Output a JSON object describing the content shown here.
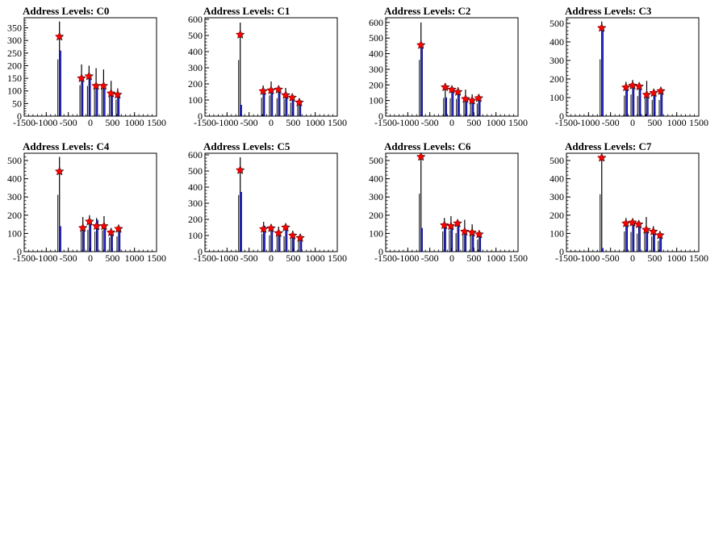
{
  "chart_data": [
    {
      "type": "histogram",
      "title": "Address Levels: C0",
      "xlim": [
        -1500,
        1500
      ],
      "ylim": [
        0,
        390
      ],
      "xticks": [
        -1500,
        -1000,
        -500,
        0,
        500,
        1000,
        1500
      ],
      "yticks": [
        0,
        50,
        100,
        150,
        200,
        250,
        300,
        350
      ],
      "peaks": [
        {
          "x": -700,
          "black": 375,
          "blue": 260,
          "marker": 315
        },
        {
          "x": -200,
          "black": 205,
          "blue": 150,
          "marker": 150
        },
        {
          "x": -30,
          "black": 200,
          "blue": 165,
          "marker": 158
        },
        {
          "x": 130,
          "black": 190,
          "blue": 125,
          "marker": 120
        },
        {
          "x": 300,
          "black": 185,
          "blue": 125,
          "marker": 120
        },
        {
          "x": 470,
          "black": 140,
          "blue": 95,
          "marker": 90
        },
        {
          "x": 620,
          "black": 110,
          "blue": 80,
          "marker": 85
        }
      ]
    },
    {
      "type": "histogram",
      "title": "Address Levels: C1",
      "xlim": [
        -1500,
        1500
      ],
      "ylim": [
        0,
        610
      ],
      "xticks": [
        -1500,
        -1000,
        -500,
        0,
        500,
        1000,
        1500
      ],
      "yticks": [
        0,
        100,
        200,
        300,
        400,
        500,
        600
      ],
      "peaks": [
        {
          "x": -700,
          "black": 580,
          "blue": 70,
          "marker": 505
        },
        {
          "x": -180,
          "black": 190,
          "blue": 160,
          "marker": 155
        },
        {
          "x": 0,
          "black": 215,
          "blue": 165,
          "marker": 160
        },
        {
          "x": 170,
          "black": 185,
          "blue": 170,
          "marker": 165
        },
        {
          "x": 330,
          "black": 175,
          "blue": 135,
          "marker": 130
        },
        {
          "x": 480,
          "black": 140,
          "blue": 120,
          "marker": 115
        },
        {
          "x": 640,
          "black": 110,
          "blue": 90,
          "marker": 85
        }
      ]
    },
    {
      "type": "histogram",
      "title": "Address Levels: C2",
      "xlim": [
        -1500,
        1500
      ],
      "ylim": [
        0,
        630
      ],
      "xticks": [
        -1500,
        -1000,
        -500,
        0,
        500,
        1000,
        1500
      ],
      "yticks": [
        0,
        100,
        200,
        300,
        400,
        500,
        600
      ],
      "peaks": [
        {
          "x": -700,
          "black": 600,
          "blue": 460,
          "marker": 455
        },
        {
          "x": -150,
          "black": 195,
          "blue": 120,
          "marker": 185
        },
        {
          "x": 0,
          "black": 190,
          "blue": 170,
          "marker": 170
        },
        {
          "x": 140,
          "black": 185,
          "blue": 150,
          "marker": 155
        },
        {
          "x": 310,
          "black": 170,
          "blue": 110,
          "marker": 110
        },
        {
          "x": 460,
          "black": 140,
          "blue": 100,
          "marker": 100
        },
        {
          "x": 610,
          "black": 135,
          "blue": 110,
          "marker": 115
        }
      ]
    },
    {
      "type": "histogram",
      "title": "Address Levels: C3",
      "xlim": [
        -1500,
        1500
      ],
      "ylim": [
        0,
        530
      ],
      "xticks": [
        -1500,
        -1000,
        -500,
        0,
        500,
        1000,
        1500
      ],
      "yticks": [
        0,
        100,
        200,
        300,
        400,
        500
      ],
      "peaks": [
        {
          "x": -700,
          "black": 510,
          "blue": 480,
          "marker": 475
        },
        {
          "x": -150,
          "black": 185,
          "blue": 160,
          "marker": 155
        },
        {
          "x": 0,
          "black": 195,
          "blue": 175,
          "marker": 165
        },
        {
          "x": 150,
          "black": 180,
          "blue": 165,
          "marker": 160
        },
        {
          "x": 320,
          "black": 190,
          "blue": 120,
          "marker": 115
        },
        {
          "x": 480,
          "black": 145,
          "blue": 125,
          "marker": 125
        },
        {
          "x": 640,
          "black": 145,
          "blue": 140,
          "marker": 135
        }
      ]
    },
    {
      "type": "histogram",
      "title": "Address Levels: C4",
      "xlim": [
        -1500,
        1500
      ],
      "ylim": [
        0,
        540
      ],
      "xticks": [
        -1500,
        -1000,
        -500,
        0,
        500,
        1000,
        1500
      ],
      "yticks": [
        0,
        100,
        200,
        300,
        400,
        500
      ],
      "peaks": [
        {
          "x": -700,
          "black": 520,
          "blue": 140,
          "marker": 440
        },
        {
          "x": -170,
          "black": 190,
          "blue": 130,
          "marker": 130
        },
        {
          "x": -20,
          "black": 200,
          "blue": 170,
          "marker": 165
        },
        {
          "x": 140,
          "black": 185,
          "blue": 175,
          "marker": 140
        },
        {
          "x": 310,
          "black": 195,
          "blue": 140,
          "marker": 140
        },
        {
          "x": 470,
          "black": 130,
          "blue": 110,
          "marker": 105
        },
        {
          "x": 640,
          "black": 140,
          "blue": 125,
          "marker": 125
        }
      ]
    },
    {
      "type": "histogram",
      "title": "Address Levels: C5",
      "xlim": [
        -1500,
        1500
      ],
      "ylim": [
        0,
        610
      ],
      "xticks": [
        -1500,
        -1000,
        -500,
        0,
        500,
        1000,
        1500
      ],
      "yticks": [
        0,
        100,
        200,
        300,
        400,
        500,
        600
      ],
      "peaks": [
        {
          "x": -700,
          "black": 585,
          "blue": 370,
          "marker": 505
        },
        {
          "x": -170,
          "black": 185,
          "blue": 160,
          "marker": 140
        },
        {
          "x": 0,
          "black": 170,
          "blue": 150,
          "marker": 145
        },
        {
          "x": 170,
          "black": 155,
          "blue": 115,
          "marker": 115
        },
        {
          "x": 330,
          "black": 160,
          "blue": 150,
          "marker": 150
        },
        {
          "x": 490,
          "black": 130,
          "blue": 100,
          "marker": 100
        },
        {
          "x": 660,
          "black": 110,
          "blue": 90,
          "marker": 85
        }
      ]
    },
    {
      "type": "histogram",
      "title": "Address Levels: C6",
      "xlim": [
        -1500,
        1500
      ],
      "ylim": [
        0,
        540
      ],
      "xticks": [
        -1500,
        -1000,
        -500,
        0,
        500,
        1000,
        1500
      ],
      "yticks": [
        0,
        100,
        200,
        300,
        400,
        500
      ],
      "peaks": [
        {
          "x": -700,
          "black": 530,
          "blue": 130,
          "marker": 520
        },
        {
          "x": -170,
          "black": 185,
          "blue": 150,
          "marker": 145
        },
        {
          "x": -20,
          "black": 195,
          "blue": 140,
          "marker": 140
        },
        {
          "x": 130,
          "black": 170,
          "blue": 160,
          "marker": 155
        },
        {
          "x": 290,
          "black": 175,
          "blue": 110,
          "marker": 110
        },
        {
          "x": 460,
          "black": 150,
          "blue": 105,
          "marker": 105
        },
        {
          "x": 620,
          "black": 110,
          "blue": 100,
          "marker": 95
        }
      ]
    },
    {
      "type": "histogram",
      "title": "Address Levels: C7",
      "xlim": [
        -1500,
        1500
      ],
      "ylim": [
        0,
        540
      ],
      "xticks": [
        -1500,
        -1000,
        -500,
        0,
        500,
        1000,
        1500
      ],
      "yticks": [
        0,
        100,
        200,
        300,
        400,
        500
      ],
      "peaks": [
        {
          "x": -700,
          "black": 525,
          "blue": 20,
          "marker": 515
        },
        {
          "x": -150,
          "black": 185,
          "blue": 160,
          "marker": 155
        },
        {
          "x": 0,
          "black": 180,
          "blue": 165,
          "marker": 160
        },
        {
          "x": 140,
          "black": 165,
          "blue": 155,
          "marker": 150
        },
        {
          "x": 310,
          "black": 190,
          "blue": 120,
          "marker": 120
        },
        {
          "x": 470,
          "black": 140,
          "blue": 110,
          "marker": 110
        },
        {
          "x": 620,
          "black": 100,
          "blue": 95,
          "marker": 90
        }
      ]
    }
  ]
}
